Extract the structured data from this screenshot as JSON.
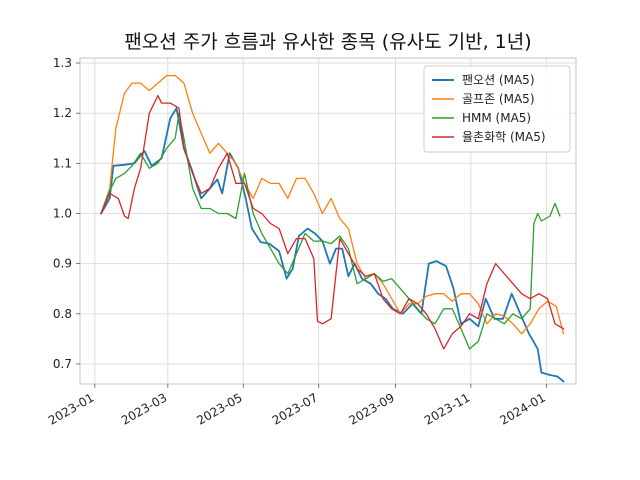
{
  "chart_data": {
    "type": "line",
    "title": "팬오션 주가 흐름과 유사한 종목 (유사도 기반, 1년)",
    "xlabel": "",
    "ylabel": "",
    "x_ticks": [
      "2023-01",
      "2023-03",
      "2023-05",
      "2023-07",
      "2023-09",
      "2023-11",
      "2024-01"
    ],
    "y_ticks": [
      "0.7",
      "0.8",
      "0.9",
      "1.0",
      "1.1",
      "1.2",
      "1.3"
    ],
    "xlim": [
      "2022-12-20",
      "2024-01-25"
    ],
    "ylim": [
      0.66,
      1.31
    ],
    "grid": true,
    "legend_position": "top-right",
    "series": [
      {
        "name": "팬오션 (MA5)",
        "color": "#1f77b4",
        "points": [
          [
            "2023-01-06",
            1.0
          ],
          [
            "2023-01-13",
            1.03
          ],
          [
            "2023-01-16",
            1.095
          ],
          [
            "2023-01-25",
            1.097
          ],
          [
            "2023-02-02",
            1.1
          ],
          [
            "2023-02-10",
            1.125
          ],
          [
            "2023-02-16",
            1.095
          ],
          [
            "2023-02-24",
            1.11
          ],
          [
            "2023-03-03",
            1.19
          ],
          [
            "2023-03-08",
            1.21
          ],
          [
            "2023-03-14",
            1.13
          ],
          [
            "2023-03-20",
            1.09
          ],
          [
            "2023-03-28",
            1.03
          ],
          [
            "2023-04-04",
            1.05
          ],
          [
            "2023-04-10",
            1.068
          ],
          [
            "2023-04-14",
            1.04
          ],
          [
            "2023-04-20",
            1.12
          ],
          [
            "2023-04-27",
            1.09
          ],
          [
            "2023-05-03",
            1.03
          ],
          [
            "2023-05-08",
            0.97
          ],
          [
            "2023-05-15",
            0.943
          ],
          [
            "2023-05-22",
            0.94
          ],
          [
            "2023-05-30",
            0.925
          ],
          [
            "2023-06-05",
            0.87
          ],
          [
            "2023-06-10",
            0.89
          ],
          [
            "2023-06-15",
            0.955
          ],
          [
            "2023-06-22",
            0.97
          ],
          [
            "2023-06-28",
            0.96
          ],
          [
            "2023-07-04",
            0.945
          ],
          [
            "2023-07-10",
            0.9
          ],
          [
            "2023-07-15",
            0.93
          ],
          [
            "2023-07-20",
            0.93
          ],
          [
            "2023-07-25",
            0.875
          ],
          [
            "2023-07-30",
            0.9
          ],
          [
            "2023-08-05",
            0.87
          ],
          [
            "2023-08-12",
            0.86
          ],
          [
            "2023-08-18",
            0.84
          ],
          [
            "2023-08-24",
            0.83
          ],
          [
            "2023-08-30",
            0.81
          ],
          [
            "2023-09-07",
            0.8
          ],
          [
            "2023-09-15",
            0.82
          ],
          [
            "2023-09-22",
            0.8
          ],
          [
            "2023-09-28",
            0.9
          ],
          [
            "2023-10-04",
            0.905
          ],
          [
            "2023-10-12",
            0.895
          ],
          [
            "2023-10-18",
            0.85
          ],
          [
            "2023-10-24",
            0.78
          ],
          [
            "2023-10-31",
            0.79
          ],
          [
            "2023-11-07",
            0.775
          ],
          [
            "2023-11-13",
            0.83
          ],
          [
            "2023-11-20",
            0.79
          ],
          [
            "2023-11-27",
            0.79
          ],
          [
            "2023-12-04",
            0.84
          ],
          [
            "2023-12-11",
            0.8
          ],
          [
            "2023-12-18",
            0.76
          ],
          [
            "2023-12-25",
            0.73
          ],
          [
            "2023-12-28",
            0.683
          ],
          [
            "2024-01-04",
            0.678
          ],
          [
            "2024-01-10",
            0.675
          ],
          [
            "2024-01-15",
            0.665
          ]
        ]
      },
      {
        "name": "골프존 (MA5)",
        "color": "#ff7f0e",
        "points": [
          [
            "2023-01-06",
            1.0
          ],
          [
            "2023-01-13",
            1.05
          ],
          [
            "2023-01-18",
            1.17
          ],
          [
            "2023-01-25",
            1.24
          ],
          [
            "2023-01-31",
            1.26
          ],
          [
            "2023-02-07",
            1.26
          ],
          [
            "2023-02-14",
            1.245
          ],
          [
            "2023-02-21",
            1.26
          ],
          [
            "2023-02-28",
            1.275
          ],
          [
            "2023-03-07",
            1.275
          ],
          [
            "2023-03-14",
            1.26
          ],
          [
            "2023-03-21",
            1.2
          ],
          [
            "2023-03-28",
            1.16
          ],
          [
            "2023-04-04",
            1.12
          ],
          [
            "2023-04-11",
            1.14
          ],
          [
            "2023-04-18",
            1.12
          ],
          [
            "2023-04-25",
            1.1
          ],
          [
            "2023-05-02",
            1.06
          ],
          [
            "2023-05-09",
            1.03
          ],
          [
            "2023-05-16",
            1.07
          ],
          [
            "2023-05-23",
            1.06
          ],
          [
            "2023-05-30",
            1.06
          ],
          [
            "2023-06-06",
            1.03
          ],
          [
            "2023-06-13",
            1.07
          ],
          [
            "2023-06-20",
            1.07
          ],
          [
            "2023-06-27",
            1.04
          ],
          [
            "2023-07-04",
            1.0
          ],
          [
            "2023-07-11",
            1.03
          ],
          [
            "2023-07-18",
            0.99
          ],
          [
            "2023-07-25",
            0.97
          ],
          [
            "2023-08-01",
            0.9
          ],
          [
            "2023-08-08",
            0.87
          ],
          [
            "2023-08-15",
            0.88
          ],
          [
            "2023-08-22",
            0.86
          ],
          [
            "2023-08-29",
            0.83
          ],
          [
            "2023-09-05",
            0.8
          ],
          [
            "2023-09-12",
            0.82
          ],
          [
            "2023-09-19",
            0.82
          ],
          [
            "2023-09-26",
            0.835
          ],
          [
            "2023-10-03",
            0.84
          ],
          [
            "2023-10-10",
            0.84
          ],
          [
            "2023-10-17",
            0.825
          ],
          [
            "2023-10-24",
            0.84
          ],
          [
            "2023-10-31",
            0.84
          ],
          [
            "2023-11-07",
            0.82
          ],
          [
            "2023-11-14",
            0.78
          ],
          [
            "2023-11-21",
            0.8
          ],
          [
            "2023-11-28",
            0.795
          ],
          [
            "2023-12-05",
            0.78
          ],
          [
            "2023-12-12",
            0.76
          ],
          [
            "2023-12-19",
            0.78
          ],
          [
            "2023-12-26",
            0.81
          ],
          [
            "2024-01-02",
            0.825
          ],
          [
            "2024-01-09",
            0.815
          ],
          [
            "2024-01-15",
            0.76
          ]
        ]
      },
      {
        "name": "HMM (MA5)",
        "color": "#2ca02c",
        "points": [
          [
            "2023-01-06",
            1.0
          ],
          [
            "2023-01-13",
            1.045
          ],
          [
            "2023-01-18",
            1.07
          ],
          [
            "2023-01-25",
            1.08
          ],
          [
            "2023-01-31",
            1.095
          ],
          [
            "2023-02-07",
            1.12
          ],
          [
            "2023-02-14",
            1.09
          ],
          [
            "2023-02-21",
            1.1
          ],
          [
            "2023-02-28",
            1.13
          ],
          [
            "2023-03-07",
            1.15
          ],
          [
            "2023-03-10",
            1.2
          ],
          [
            "2023-03-14",
            1.15
          ],
          [
            "2023-03-21",
            1.05
          ],
          [
            "2023-03-28",
            1.01
          ],
          [
            "2023-04-04",
            1.01
          ],
          [
            "2023-04-11",
            1.0
          ],
          [
            "2023-04-18",
            1.0
          ],
          [
            "2023-04-25",
            0.99
          ],
          [
            "2023-05-02",
            1.08
          ],
          [
            "2023-05-09",
            1.0
          ],
          [
            "2023-05-16",
            0.96
          ],
          [
            "2023-05-23",
            0.93
          ],
          [
            "2023-05-30",
            0.9
          ],
          [
            "2023-06-06",
            0.88
          ],
          [
            "2023-06-13",
            0.92
          ],
          [
            "2023-06-20",
            0.96
          ],
          [
            "2023-06-27",
            0.945
          ],
          [
            "2023-07-04",
            0.945
          ],
          [
            "2023-07-11",
            0.94
          ],
          [
            "2023-07-18",
            0.955
          ],
          [
            "2023-07-25",
            0.93
          ],
          [
            "2023-08-01",
            0.86
          ],
          [
            "2023-08-08",
            0.87
          ],
          [
            "2023-08-15",
            0.88
          ],
          [
            "2023-08-22",
            0.865
          ],
          [
            "2023-08-29",
            0.87
          ],
          [
            "2023-09-05",
            0.85
          ],
          [
            "2023-09-12",
            0.83
          ],
          [
            "2023-09-19",
            0.81
          ],
          [
            "2023-09-26",
            0.79
          ],
          [
            "2023-10-03",
            0.78
          ],
          [
            "2023-10-10",
            0.81
          ],
          [
            "2023-10-17",
            0.81
          ],
          [
            "2023-10-24",
            0.77
          ],
          [
            "2023-10-31",
            0.73
          ],
          [
            "2023-11-07",
            0.745
          ],
          [
            "2023-11-14",
            0.8
          ],
          [
            "2023-11-21",
            0.79
          ],
          [
            "2023-11-28",
            0.78
          ],
          [
            "2023-12-05",
            0.8
          ],
          [
            "2023-12-12",
            0.79
          ],
          [
            "2023-12-19",
            0.81
          ],
          [
            "2023-12-22",
            0.98
          ],
          [
            "2023-12-25",
            1.0
          ],
          [
            "2023-12-28",
            0.985
          ],
          [
            "2024-01-04",
            0.995
          ],
          [
            "2024-01-08",
            1.02
          ],
          [
            "2024-01-12",
            0.995
          ]
        ]
      },
      {
        "name": "율촌화학 (MA5)",
        "color": "#d62728",
        "points": [
          [
            "2023-01-06",
            1.0
          ],
          [
            "2023-01-13",
            1.04
          ],
          [
            "2023-01-20",
            1.03
          ],
          [
            "2023-01-25",
            0.995
          ],
          [
            "2023-01-28",
            0.99
          ],
          [
            "2023-02-02",
            1.05
          ],
          [
            "2023-02-07",
            1.09
          ],
          [
            "2023-02-14",
            1.2
          ],
          [
            "2023-02-21",
            1.235
          ],
          [
            "2023-02-24",
            1.22
          ],
          [
            "2023-03-03",
            1.22
          ],
          [
            "2023-03-10",
            1.21
          ],
          [
            "2023-03-14",
            1.13
          ],
          [
            "2023-03-21",
            1.08
          ],
          [
            "2023-03-28",
            1.04
          ],
          [
            "2023-04-04",
            1.05
          ],
          [
            "2023-04-11",
            1.09
          ],
          [
            "2023-04-18",
            1.12
          ],
          [
            "2023-04-25",
            1.06
          ],
          [
            "2023-05-02",
            1.06
          ],
          [
            "2023-05-09",
            1.01
          ],
          [
            "2023-05-16",
            1.0
          ],
          [
            "2023-05-23",
            0.98
          ],
          [
            "2023-05-30",
            0.97
          ],
          [
            "2023-06-06",
            0.92
          ],
          [
            "2023-06-13",
            0.95
          ],
          [
            "2023-06-20",
            0.95
          ],
          [
            "2023-06-27",
            0.91
          ],
          [
            "2023-06-30",
            0.785
          ],
          [
            "2023-07-04",
            0.78
          ],
          [
            "2023-07-11",
            0.79
          ],
          [
            "2023-07-18",
            0.95
          ],
          [
            "2023-07-25",
            0.92
          ],
          [
            "2023-08-01",
            0.89
          ],
          [
            "2023-08-08",
            0.875
          ],
          [
            "2023-08-15",
            0.88
          ],
          [
            "2023-08-22",
            0.83
          ],
          [
            "2023-08-29",
            0.81
          ],
          [
            "2023-09-05",
            0.8
          ],
          [
            "2023-09-12",
            0.83
          ],
          [
            "2023-09-19",
            0.82
          ],
          [
            "2023-09-26",
            0.8
          ],
          [
            "2023-10-03",
            0.77
          ],
          [
            "2023-10-10",
            0.73
          ],
          [
            "2023-10-17",
            0.76
          ],
          [
            "2023-10-24",
            0.775
          ],
          [
            "2023-10-31",
            0.8
          ],
          [
            "2023-11-07",
            0.79
          ],
          [
            "2023-11-14",
            0.86
          ],
          [
            "2023-11-21",
            0.9
          ],
          [
            "2023-11-28",
            0.88
          ],
          [
            "2023-12-05",
            0.86
          ],
          [
            "2023-12-12",
            0.84
          ],
          [
            "2023-12-19",
            0.83
          ],
          [
            "2023-12-26",
            0.84
          ],
          [
            "2024-01-02",
            0.83
          ],
          [
            "2024-01-08",
            0.78
          ],
          [
            "2024-01-15",
            0.77
          ]
        ]
      }
    ]
  }
}
